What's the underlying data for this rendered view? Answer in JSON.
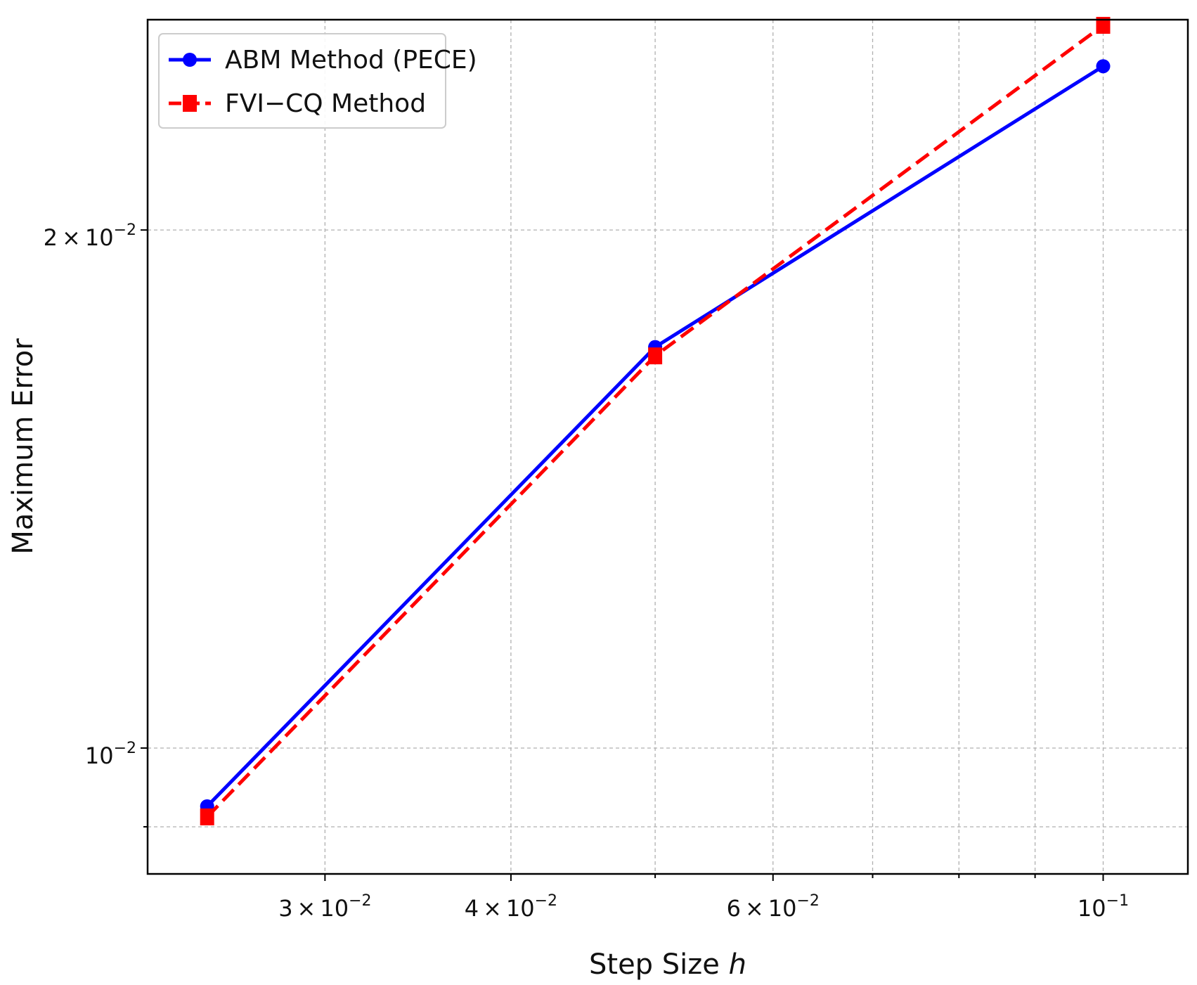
{
  "chart_data": {
    "type": "line",
    "xlabel": "Step Size",
    "xlabel_var": "h",
    "ylabel": "Maximum Error",
    "x_scale": "log",
    "y_scale": "log",
    "xlim": [
      0.0228,
      0.114
    ],
    "ylim": [
      0.00845,
      0.0265
    ],
    "grid": true,
    "legend_position": "top-left",
    "x_ticks": [
      {
        "value": 0.03,
        "mantissa": "3",
        "exponent": "−2"
      },
      {
        "value": 0.04,
        "mantissa": "4",
        "exponent": "−2"
      },
      {
        "value": 0.06,
        "mantissa": "6",
        "exponent": "−2"
      },
      {
        "value": 0.1,
        "mantissa": "",
        "exponent": "−1"
      }
    ],
    "x_minor_ticks": [
      0.05,
      0.07,
      0.08,
      0.09
    ],
    "y_ticks": [
      {
        "value": 0.01,
        "mantissa": "",
        "exponent": "−2"
      },
      {
        "value": 0.02,
        "mantissa": "2",
        "exponent": "−2"
      }
    ],
    "y_minor_ticks": [
      0.009
    ],
    "x": [
      0.025,
      0.05,
      0.1
    ],
    "series": [
      {
        "name": "ABM Method (PECE)",
        "values": [
          0.00925,
          0.0171,
          0.0249
        ],
        "color": "#0000ff",
        "style": "solid",
        "marker": "circle"
      },
      {
        "name": "FVI−CQ Method",
        "values": [
          0.00912,
          0.0169,
          0.0263
        ],
        "color": "#ff0000",
        "style": "dashed",
        "marker": "square"
      }
    ]
  }
}
